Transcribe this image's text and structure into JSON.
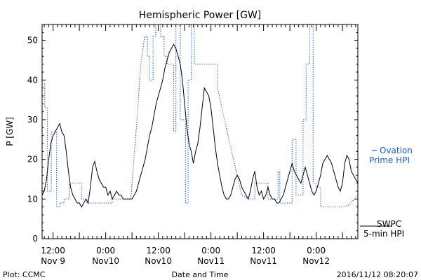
{
  "chart_data": {
    "type": "line",
    "title": "Hemispheric Power [GW]",
    "ylabel": "P [GW]",
    "xlabel": "Date and Time",
    "ylim": [
      0,
      54
    ],
    "yticks": [
      0,
      10,
      20,
      30,
      40,
      50
    ],
    "xlim_hours": [
      0,
      72
    ],
    "xticks": [
      {
        "hour": 2.5,
        "line1": "12:00",
        "line2": "Nov 9"
      },
      {
        "hour": 14.5,
        "line1": "0:00",
        "line2": "Nov10"
      },
      {
        "hour": 26.5,
        "line1": "12:00",
        "line2": "Nov10"
      },
      {
        "hour": 38.5,
        "line1": "0:00",
        "line2": "Nov11"
      },
      {
        "hour": 50.5,
        "line1": "12:00",
        "line2": "Nov11"
      },
      {
        "hour": 62.5,
        "line1": "0:00",
        "line2": "Nov12"
      }
    ],
    "grid": false,
    "series": [
      {
        "name": "Ovation Prime HPI",
        "color": "#1f5fbf",
        "style": "dotted",
        "points": [
          [
            0,
            39
          ],
          [
            0.6,
            39
          ],
          [
            0.6,
            33
          ],
          [
            1.2,
            33
          ],
          [
            1.2,
            12
          ],
          [
            2.1,
            12
          ],
          [
            2.1,
            27
          ],
          [
            3.3,
            27
          ],
          [
            3.3,
            8
          ],
          [
            4.0,
            8
          ],
          [
            4.0,
            9
          ],
          [
            5.0,
            9
          ],
          [
            5.0,
            10
          ],
          [
            6.2,
            10
          ],
          [
            6.2,
            14
          ],
          [
            9.0,
            14
          ],
          [
            9.0,
            10
          ],
          [
            10.2,
            10
          ],
          [
            10.2,
            9
          ],
          [
            14.5,
            9
          ],
          [
            16.0,
            9
          ],
          [
            16.0,
            10
          ],
          [
            20.2,
            10
          ],
          [
            21.5,
            28
          ],
          [
            22.5,
            44
          ],
          [
            23.4,
            51
          ],
          [
            24.0,
            51
          ],
          [
            24.0,
            46
          ],
          [
            24.5,
            46
          ],
          [
            24.5,
            40
          ],
          [
            25.3,
            40
          ],
          [
            25.3,
            51
          ],
          [
            25.9,
            51
          ],
          [
            25.9,
            54
          ],
          [
            27.0,
            54
          ],
          [
            27.0,
            51
          ],
          [
            27.8,
            51
          ],
          [
            27.8,
            46
          ],
          [
            28.5,
            46
          ],
          [
            28.5,
            44
          ],
          [
            30.0,
            44
          ],
          [
            30.0,
            27
          ],
          [
            30.5,
            27
          ],
          [
            30.5,
            54
          ],
          [
            31.5,
            54
          ],
          [
            31.5,
            30
          ],
          [
            32.7,
            30
          ],
          [
            32.7,
            9
          ],
          [
            33.3,
            9
          ],
          [
            33.3,
            40
          ],
          [
            34.0,
            40
          ],
          [
            34.0,
            54
          ],
          [
            34.7,
            54
          ],
          [
            34.7,
            44
          ],
          [
            40.0,
            44
          ],
          [
            40.0,
            38
          ],
          [
            43.0,
            23
          ],
          [
            45.5,
            11
          ],
          [
            47.0,
            10
          ],
          [
            48.5,
            10
          ],
          [
            48.5,
            14
          ],
          [
            51.5,
            14
          ],
          [
            51.5,
            10
          ],
          [
            53.8,
            10
          ],
          [
            53.8,
            17
          ],
          [
            54.2,
            17
          ],
          [
            54.2,
            9
          ],
          [
            57.0,
            9
          ],
          [
            57.0,
            25
          ],
          [
            57.9,
            25
          ],
          [
            57.9,
            11
          ],
          [
            59.5,
            11
          ],
          [
            59.5,
            30
          ],
          [
            60.2,
            30
          ],
          [
            60.2,
            44
          ],
          [
            61.0,
            44
          ],
          [
            61.0,
            54
          ],
          [
            61.8,
            54
          ],
          [
            61.8,
            14
          ],
          [
            62.5,
            14
          ],
          [
            62.5,
            13
          ],
          [
            63.5,
            13
          ],
          [
            63.5,
            8
          ],
          [
            68.5,
            8
          ],
          [
            70.0,
            8.5
          ],
          [
            71.2,
            10
          ],
          [
            72.0,
            11
          ]
        ]
      },
      {
        "name": "SWPC 5-min HPI",
        "color": "#000000",
        "style": "solid",
        "points": [
          [
            0,
            11
          ],
          [
            0.5,
            12
          ],
          [
            1.0,
            15
          ],
          [
            1.5,
            20
          ],
          [
            2.0,
            24
          ],
          [
            2.5,
            26
          ],
          [
            3.0,
            27
          ],
          [
            3.5,
            28
          ],
          [
            4.0,
            29
          ],
          [
            4.5,
            27
          ],
          [
            5.0,
            26
          ],
          [
            5.5,
            22
          ],
          [
            6.0,
            17
          ],
          [
            6.5,
            13
          ],
          [
            7.0,
            11
          ],
          [
            7.5,
            10
          ],
          [
            8.0,
            9
          ],
          [
            8.5,
            9
          ],
          [
            9.0,
            8
          ],
          [
            9.5,
            9
          ],
          [
            10.0,
            10
          ],
          [
            10.5,
            9
          ],
          [
            11.0,
            13
          ],
          [
            11.5,
            18
          ],
          [
            12.0,
            19.5
          ],
          [
            12.5,
            17
          ],
          [
            13.0,
            15
          ],
          [
            13.5,
            14
          ],
          [
            14.0,
            13
          ],
          [
            14.5,
            13
          ],
          [
            15.0,
            11
          ],
          [
            15.5,
            12
          ],
          [
            16.0,
            10
          ],
          [
            16.5,
            11
          ],
          [
            17.0,
            12
          ],
          [
            17.5,
            11
          ],
          [
            18.0,
            11
          ],
          [
            18.5,
            10
          ],
          [
            19.0,
            10
          ],
          [
            19.5,
            10
          ],
          [
            20.0,
            10
          ],
          [
            20.5,
            10
          ],
          [
            21.0,
            11
          ],
          [
            21.5,
            12
          ],
          [
            22.0,
            14
          ],
          [
            22.5,
            16
          ],
          [
            23.0,
            18
          ],
          [
            23.5,
            20
          ],
          [
            24.0,
            23
          ],
          [
            24.5,
            26
          ],
          [
            25.0,
            28
          ],
          [
            25.5,
            31
          ],
          [
            26.0,
            34
          ],
          [
            26.5,
            36
          ],
          [
            27.0,
            38
          ],
          [
            27.5,
            40
          ],
          [
            28.0,
            43
          ],
          [
            28.5,
            45
          ],
          [
            29.0,
            47
          ],
          [
            29.5,
            48
          ],
          [
            30.0,
            49
          ],
          [
            30.5,
            48
          ],
          [
            31.0,
            46
          ],
          [
            31.5,
            44
          ],
          [
            32.0,
            40
          ],
          [
            32.5,
            34
          ],
          [
            33.0,
            28
          ],
          [
            33.5,
            24
          ],
          [
            34.0,
            22
          ],
          [
            34.5,
            19
          ],
          [
            35.0,
            22
          ],
          [
            35.5,
            24
          ],
          [
            36.0,
            28
          ],
          [
            36.5,
            33
          ],
          [
            37.0,
            38
          ],
          [
            37.5,
            37
          ],
          [
            38.0,
            36
          ],
          [
            38.5,
            33
          ],
          [
            39.0,
            28
          ],
          [
            39.5,
            23
          ],
          [
            40.0,
            19
          ],
          [
            40.5,
            16
          ],
          [
            41.0,
            13
          ],
          [
            41.5,
            11
          ],
          [
            42.0,
            10
          ],
          [
            42.5,
            10
          ],
          [
            43.0,
            11
          ],
          [
            43.5,
            13
          ],
          [
            44.0,
            15
          ],
          [
            44.5,
            16
          ],
          [
            45.0,
            15
          ],
          [
            45.5,
            13
          ],
          [
            46.0,
            12
          ],
          [
            46.5,
            11
          ],
          [
            47.0,
            10
          ],
          [
            47.5,
            12
          ],
          [
            48.0,
            15
          ],
          [
            48.5,
            17
          ],
          [
            49.0,
            13
          ],
          [
            49.5,
            11
          ],
          [
            50.0,
            12
          ],
          [
            50.5,
            10
          ],
          [
            51.0,
            11
          ],
          [
            51.5,
            13
          ],
          [
            52.0,
            11
          ],
          [
            52.5,
            10
          ],
          [
            53.0,
            10
          ],
          [
            53.5,
            9
          ],
          [
            54.0,
            9
          ],
          [
            54.5,
            10
          ],
          [
            55.0,
            11
          ],
          [
            55.5,
            13
          ],
          [
            56.0,
            15
          ],
          [
            56.5,
            17
          ],
          [
            57.0,
            19
          ],
          [
            57.5,
            17
          ],
          [
            58.0,
            16
          ],
          [
            58.5,
            15
          ],
          [
            59.0,
            14
          ],
          [
            59.5,
            16
          ],
          [
            60.0,
            18
          ],
          [
            60.5,
            16
          ],
          [
            61.0,
            14
          ],
          [
            61.5,
            12
          ],
          [
            62.0,
            11
          ],
          [
            62.5,
            12
          ],
          [
            63.0,
            14
          ],
          [
            63.5,
            16
          ],
          [
            64.0,
            19
          ],
          [
            64.5,
            20
          ],
          [
            65.0,
            21
          ],
          [
            65.5,
            20
          ],
          [
            66.0,
            19
          ],
          [
            66.5,
            17
          ],
          [
            67.0,
            15
          ],
          [
            67.5,
            13
          ],
          [
            68.0,
            12
          ],
          [
            68.5,
            14
          ],
          [
            69.0,
            19
          ],
          [
            69.5,
            21
          ],
          [
            70.0,
            20
          ],
          [
            70.5,
            17
          ],
          [
            71.0,
            16
          ],
          [
            71.5,
            15
          ],
          [
            72.0,
            14
          ]
        ]
      }
    ],
    "legend": {
      "placement": "right",
      "ovation": {
        "line1": "Ovation",
        "line2": "Prime HPI",
        "color": "#1f5fbf"
      },
      "swpc": {
        "line1": "SWPC",
        "line2": "5-min HPI",
        "color": "#000000"
      }
    }
  },
  "footer": {
    "plot_credit": "Plot: CCMC",
    "timestamp": "2016/11/12 08:20:07"
  }
}
